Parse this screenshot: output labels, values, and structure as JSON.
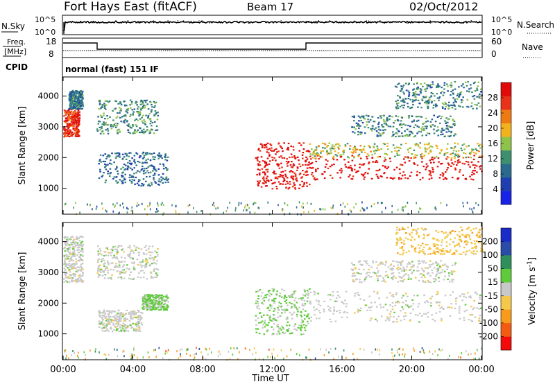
{
  "header": {
    "station": "Fort Hays East (fitACF)",
    "beam": "Beam 17",
    "date": "02/Oct/2012"
  },
  "noise_panel": {
    "left_label": "N.Sky",
    "right_label": "N.Search",
    "tick_top": "10^5",
    "tick_bottom": "10^0"
  },
  "freq_panel": {
    "label_top": "Freq.",
    "label_bottom": "[MHz]",
    "left_ticks": [
      "18",
      "8"
    ],
    "right_ticks": [
      "60",
      "0"
    ],
    "right_label": "Nave"
  },
  "cpid": {
    "label": "CPID",
    "text": "normal (fast) 151 IF"
  },
  "x_ticks": [
    "00:00",
    "04:00",
    "08:00",
    "12:00",
    "16:00",
    "20:00",
    "00:00"
  ],
  "xlabel": "Time UT",
  "colors": {
    "power_scale": [
      "#1a22e8",
      "#1f3fb0",
      "#2b6a8e",
      "#3d8f70",
      "#8ec34a",
      "#f2b21e",
      "#f07a12",
      "#e8321a",
      "#e00a0a"
    ],
    "velocity_scale": [
      "#f40a0a",
      "#f35a12",
      "#f89a1a",
      "#f4c84a",
      "#c8c8c8",
      "#5fcb3a",
      "#2f8f5a",
      "#2a4ba8",
      "#1a2cc8"
    ],
    "ground_scatter": "#c8c8c8"
  },
  "chart_data": [
    {
      "type": "heatmap",
      "title": "",
      "xlabel": "Time UT",
      "ylabel": "Slant Range [km]",
      "x_ticks": [
        "00:00",
        "04:00",
        "08:00",
        "12:00",
        "16:00",
        "20:00",
        "00:00"
      ],
      "xlim": [
        0,
        24
      ],
      "y_ticks": [
        1000,
        2000,
        3000,
        4000
      ],
      "ylim": [
        180,
        4600
      ],
      "colorbar": {
        "label": "Power [dB]",
        "ticks": [
          4,
          8,
          12,
          16,
          20,
          24,
          28
        ],
        "range": [
          0,
          32
        ]
      },
      "features": [
        {
          "t": [
            0.0,
            0.9
          ],
          "r": [
            2700,
            3600
          ],
          "p": 28
        },
        {
          "t": [
            0.3,
            1.1
          ],
          "r": [
            3600,
            4200
          ],
          "p": 10
        },
        {
          "t": [
            1.9,
            5.4
          ],
          "r": [
            2800,
            3900
          ],
          "p": 12
        },
        {
          "t": [
            2.0,
            6.0
          ],
          "r": [
            1100,
            2200
          ],
          "p": 9
        },
        {
          "t": [
            11.0,
            14.1
          ],
          "r": [
            1000,
            2500
          ],
          "p": 30
        },
        {
          "t": [
            14.1,
            24.0
          ],
          "r": [
            1300,
            2100
          ],
          "p": 31
        },
        {
          "t": [
            14.1,
            24.0
          ],
          "r": [
            2000,
            2500
          ],
          "p": 17
        },
        {
          "t": [
            16.5,
            22.5
          ],
          "r": [
            2700,
            3400
          ],
          "p": 11
        },
        {
          "t": [
            19.0,
            24.0
          ],
          "r": [
            3600,
            4500
          ],
          "p": 11
        }
      ]
    },
    {
      "type": "heatmap",
      "title": "",
      "xlabel": "Time UT",
      "ylabel": "Slant Range [km]",
      "x_ticks": [
        "00:00",
        "04:00",
        "08:00",
        "12:00",
        "16:00",
        "20:00",
        "00:00"
      ],
      "xlim": [
        0,
        24
      ],
      "y_ticks": [
        1000,
        2000,
        3000,
        4000
      ],
      "ylim": [
        180,
        4600
      ],
      "colorbar": {
        "label": "Velocity [m s^-1]",
        "ticks": [
          -200,
          -100,
          -50,
          -15,
          15,
          50,
          100,
          200
        ],
        "range": [
          -250,
          250
        ]
      },
      "features": [
        {
          "t": [
            0.0,
            1.1
          ],
          "r": [
            2700,
            4200
          ],
          "v": 0
        },
        {
          "t": [
            1.9,
            5.4
          ],
          "r": [
            2800,
            3900
          ],
          "v": 0
        },
        {
          "t": [
            2.0,
            4.5
          ],
          "r": [
            1100,
            1800
          ],
          "v": 0
        },
        {
          "t": [
            4.5,
            6.0
          ],
          "r": [
            1800,
            2300
          ],
          "v": 40
        },
        {
          "t": [
            11.0,
            14.1
          ],
          "r": [
            1000,
            2500
          ],
          "v": 35
        },
        {
          "t": [
            14.1,
            24.0
          ],
          "r": [
            1400,
            2400
          ],
          "v": 0
        },
        {
          "t": [
            16.5,
            22.5
          ],
          "r": [
            2700,
            3400
          ],
          "v": 0
        },
        {
          "t": [
            19.0,
            24.0
          ],
          "r": [
            3600,
            4500
          ],
          "v": -60
        }
      ]
    }
  ]
}
